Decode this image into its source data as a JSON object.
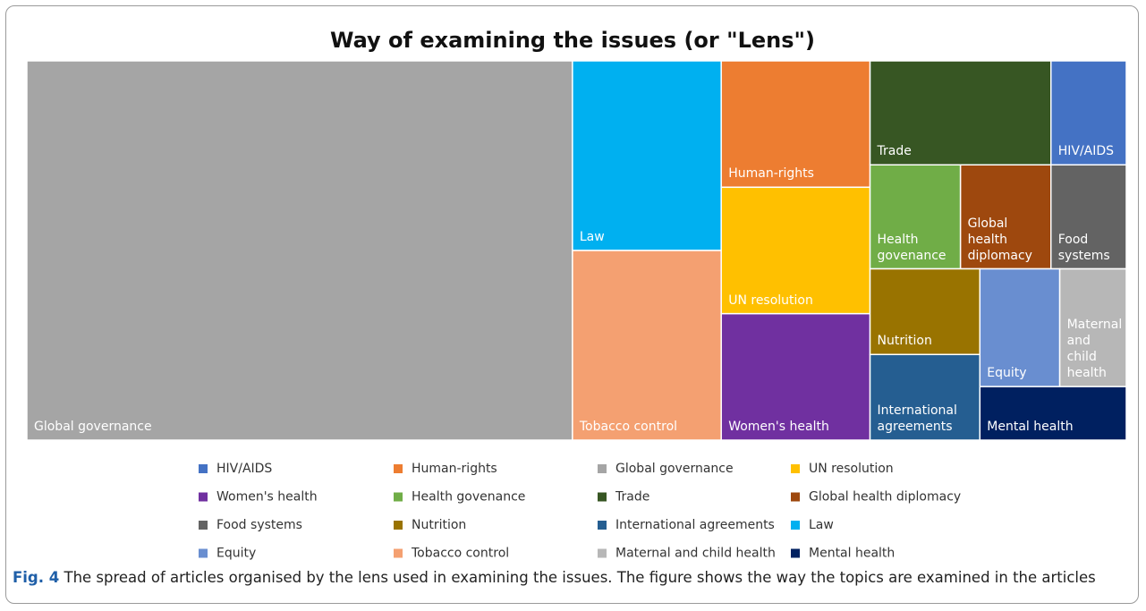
{
  "chart_data": {
    "type": "treemap",
    "title": "Way of examining the issues (or \"Lens\")",
    "categories": [
      "HIV/AIDS",
      "Human-rights",
      "Global governance",
      "UN resolution",
      "Women's health",
      "Health govenance",
      "Trade",
      "Global health diplomacy",
      "Food systems",
      "Nutrition",
      "International agreements",
      "Law",
      "Equity",
      "Tobacco control",
      "Maternal and child health",
      "Mental health"
    ],
    "values": [
      5,
      12,
      132,
      12,
      12,
      6,
      12,
      6,
      5,
      6,
      6,
      18,
      6,
      18,
      5,
      5
    ],
    "colors": [
      "#4472c4",
      "#ed7d31",
      "#a5a5a5",
      "#ffc000",
      "#7030a0",
      "#70ad47",
      "#375623",
      "#9e480e",
      "#636363",
      "#997300",
      "#255e91",
      "#00b0f0",
      "#698ed0",
      "#f4a071",
      "#b7b7b7",
      "#002060"
    ],
    "legend": "bottom"
  },
  "caption_label": "Fig. 4",
  "caption": "The spread of articles organised by the lens used in examining the issues. The figure shows the way the topics are examined in the articles"
}
